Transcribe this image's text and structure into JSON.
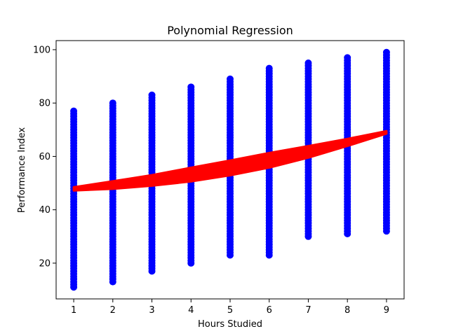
{
  "chart_data": {
    "type": "scatter",
    "title": "Polynomial Regression",
    "xlabel": "Hours Studied",
    "ylabel": "Performance Index",
    "xlim": [
      0.55,
      9.45
    ],
    "ylim": [
      6.6,
      103.4
    ],
    "x_ticks": [
      1,
      2,
      3,
      4,
      5,
      6,
      7,
      8,
      9
    ],
    "y_ticks": [
      20,
      40,
      60,
      80,
      100
    ],
    "grid": false,
    "colors": {
      "points": "#0000ff",
      "fit": "#ff0000"
    },
    "scatter_ranges": [
      {
        "x": 1,
        "min": 11,
        "max": 77
      },
      {
        "x": 2,
        "min": 13,
        "max": 80
      },
      {
        "x": 3,
        "min": 17,
        "max": 83
      },
      {
        "x": 4,
        "min": 20,
        "max": 86
      },
      {
        "x": 5,
        "min": 23,
        "max": 89
      },
      {
        "x": 6,
        "min": 23,
        "max": 93
      },
      {
        "x": 7,
        "min": 30,
        "max": 95
      },
      {
        "x": 8,
        "min": 31,
        "max": 97
      },
      {
        "x": 9,
        "min": 32,
        "max": 99
      }
    ],
    "fit_band": {
      "x": [
        1,
        2,
        3,
        4,
        5,
        6,
        7,
        8,
        9
      ],
      "upper": [
        48.5,
        50.7,
        53.0,
        55.8,
        58.5,
        61.3,
        63.9,
        66.6,
        69.5
      ],
      "lower": [
        47.2,
        47.8,
        49.0,
        50.6,
        52.9,
        55.8,
        59.5,
        63.9,
        68.5
      ]
    }
  }
}
